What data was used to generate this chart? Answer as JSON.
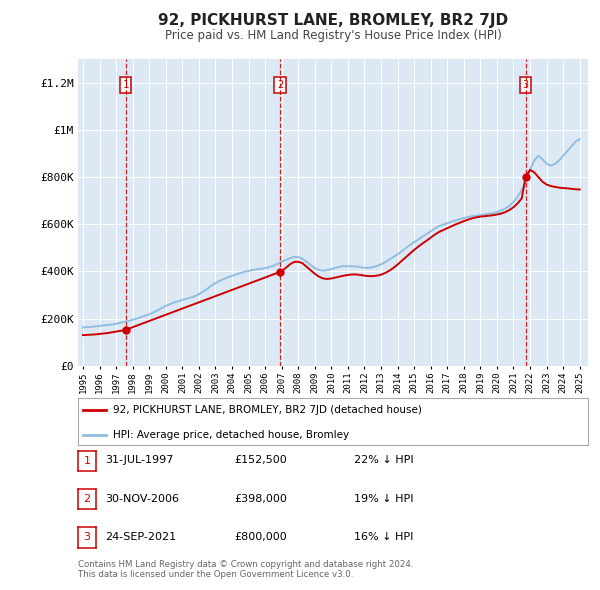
{
  "title": "92, PICKHURST LANE, BROMLEY, BR2 7JD",
  "subtitle": "Price paid vs. HM Land Registry's House Price Index (HPI)",
  "background_color": "#ffffff",
  "plot_bg_color": "#dce9f5",
  "hpi_color": "#90bde0",
  "sale_color": "#cc0000",
  "ylim": [
    0,
    1300000
  ],
  "yticks": [
    0,
    200000,
    400000,
    600000,
    800000,
    1000000,
    1200000
  ],
  "ytick_labels": [
    "£0",
    "£200K",
    "£400K",
    "£600K",
    "£800K",
    "£1M",
    "£1.2M"
  ],
  "sale_dates": [
    1997.58,
    2006.91,
    2021.73
  ],
  "sale_prices": [
    152500,
    398000,
    800000
  ],
  "sale_labels": [
    "1",
    "2",
    "3"
  ],
  "legend_line1": "92, PICKHURST LANE, BROMLEY, BR2 7JD (detached house)",
  "legend_line2": "HPI: Average price, detached house, Bromley",
  "table_rows": [
    [
      "1",
      "31-JUL-1997",
      "£152,500",
      "22% ↓ HPI"
    ],
    [
      "2",
      "30-NOV-2006",
      "£398,000",
      "19% ↓ HPI"
    ],
    [
      "3",
      "24-SEP-2021",
      "£800,000",
      "16% ↓ HPI"
    ]
  ],
  "footer": "Contains HM Land Registry data © Crown copyright and database right 2024.\nThis data is licensed under the Open Government Licence v3.0.",
  "xmin": 1994.7,
  "xmax": 2025.5,
  "hpi_years": [
    1995.0,
    1995.25,
    1995.5,
    1995.75,
    1996.0,
    1996.25,
    1996.5,
    1996.75,
    1997.0,
    1997.25,
    1997.5,
    1997.75,
    1998.0,
    1998.25,
    1998.5,
    1998.75,
    1999.0,
    1999.25,
    1999.5,
    1999.75,
    2000.0,
    2000.25,
    2000.5,
    2000.75,
    2001.0,
    2001.25,
    2001.5,
    2001.75,
    2002.0,
    2002.25,
    2002.5,
    2002.75,
    2003.0,
    2003.25,
    2003.5,
    2003.75,
    2004.0,
    2004.25,
    2004.5,
    2004.75,
    2005.0,
    2005.25,
    2005.5,
    2005.75,
    2006.0,
    2006.25,
    2006.5,
    2006.75,
    2007.0,
    2007.25,
    2007.5,
    2007.75,
    2008.0,
    2008.25,
    2008.5,
    2008.75,
    2009.0,
    2009.25,
    2009.5,
    2009.75,
    2010.0,
    2010.25,
    2010.5,
    2010.75,
    2011.0,
    2011.25,
    2011.5,
    2011.75,
    2012.0,
    2012.25,
    2012.5,
    2012.75,
    2013.0,
    2013.25,
    2013.5,
    2013.75,
    2014.0,
    2014.25,
    2014.5,
    2014.75,
    2015.0,
    2015.25,
    2015.5,
    2015.75,
    2016.0,
    2016.25,
    2016.5,
    2016.75,
    2017.0,
    2017.25,
    2017.5,
    2017.75,
    2018.0,
    2018.25,
    2018.5,
    2018.75,
    2019.0,
    2019.25,
    2019.5,
    2019.75,
    2020.0,
    2020.25,
    2020.5,
    2020.75,
    2021.0,
    2021.25,
    2021.5,
    2021.75,
    2022.0,
    2022.25,
    2022.5,
    2022.75,
    2023.0,
    2023.25,
    2023.5,
    2023.75,
    2024.0,
    2024.25,
    2024.5,
    2024.75,
    2025.0
  ],
  "hpi_values": [
    163000,
    164000,
    165000,
    167000,
    169000,
    171000,
    173000,
    175000,
    178000,
    182000,
    186000,
    190000,
    195000,
    200000,
    206000,
    212000,
    218000,
    226000,
    235000,
    244000,
    254000,
    261000,
    268000,
    274000,
    279000,
    284000,
    289000,
    295000,
    303000,
    314000,
    326000,
    339000,
    350000,
    360000,
    368000,
    375000,
    381000,
    387000,
    393000,
    398000,
    402000,
    406000,
    409000,
    411000,
    414000,
    418000,
    424000,
    432000,
    441000,
    449000,
    456000,
    461000,
    461000,
    454000,
    441000,
    427000,
    414000,
    406000,
    403000,
    405000,
    410000,
    415000,
    420000,
    422000,
    422000,
    421000,
    421000,
    418000,
    415000,
    415000,
    418000,
    423000,
    430000,
    439000,
    450000,
    461000,
    473000,
    485000,
    499000,
    512000,
    524000,
    535000,
    547000,
    558000,
    570000,
    582000,
    592000,
    598000,
    604000,
    610000,
    616000,
    621000,
    626000,
    630000,
    634000,
    636000,
    639000,
    641000,
    644000,
    647000,
    651000,
    658000,
    666000,
    678000,
    694000,
    716000,
    745000,
    780000,
    830000,
    870000,
    890000,
    875000,
    856000,
    848000,
    855000,
    870000,
    890000,
    910000,
    930000,
    950000,
    960000
  ],
  "red_line_years": [
    1995.0,
    1995.25,
    1995.5,
    1995.75,
    1996.0,
    1996.25,
    1996.5,
    1996.75,
    1997.0,
    1997.25,
    1997.5,
    1997.58,
    2006.91,
    2007.0,
    2007.25,
    2007.5,
    2007.75,
    2008.0,
    2008.25,
    2008.5,
    2008.75,
    2009.0,
    2009.25,
    2009.5,
    2009.75,
    2010.0,
    2010.25,
    2010.5,
    2010.75,
    2011.0,
    2011.25,
    2011.5,
    2011.75,
    2012.0,
    2012.25,
    2012.5,
    2012.75,
    2013.0,
    2013.25,
    2013.5,
    2013.75,
    2014.0,
    2014.25,
    2014.5,
    2014.75,
    2015.0,
    2015.25,
    2015.5,
    2015.75,
    2016.0,
    2016.25,
    2016.5,
    2016.75,
    2017.0,
    2017.25,
    2017.5,
    2017.75,
    2018.0,
    2018.25,
    2018.5,
    2018.75,
    2019.0,
    2019.25,
    2019.5,
    2019.75,
    2020.0,
    2020.25,
    2020.5,
    2020.75,
    2021.0,
    2021.25,
    2021.5,
    2021.73,
    2022.0,
    2022.25,
    2022.5,
    2022.75,
    2023.0,
    2023.25,
    2023.5,
    2023.75,
    2024.0,
    2024.25,
    2024.5,
    2024.75,
    2025.0
  ],
  "red_line_values": [
    130000,
    131000,
    132000,
    133000,
    135000,
    137000,
    139000,
    142000,
    145000,
    148000,
    151000,
    152500,
    398000,
    400000,
    415000,
    430000,
    440000,
    441000,
    435000,
    420000,
    405000,
    390000,
    378000,
    370000,
    368000,
    370000,
    374000,
    378000,
    382000,
    385000,
    387000,
    387000,
    385000,
    382000,
    380000,
    380000,
    382000,
    386000,
    393000,
    403000,
    415000,
    429000,
    445000,
    460000,
    476000,
    491000,
    505000,
    518000,
    530000,
    543000,
    556000,
    567000,
    575000,
    583000,
    591000,
    599000,
    606000,
    613000,
    619000,
    625000,
    629000,
    632000,
    634000,
    636000,
    638000,
    641000,
    645000,
    651000,
    660000,
    672000,
    688000,
    710000,
    800000,
    830000,
    820000,
    800000,
    780000,
    768000,
    762000,
    758000,
    755000,
    753000,
    752000,
    750000,
    748000,
    747000
  ]
}
